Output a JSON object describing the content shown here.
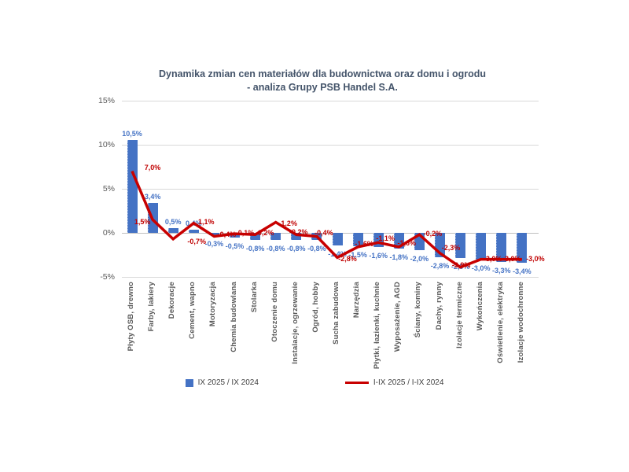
{
  "title": {
    "line1": "Dynamika zmian cen materiałów dla budownictwa oraz domu i ogrodu",
    "line2": "- analiza Grupy PSB Handel S.A."
  },
  "colors": {
    "bar": "#4472C4",
    "line": "#C80000",
    "bar_label": "#4472C4",
    "line_label": "#C00000",
    "title": "#44546A",
    "axis_text": "#595959"
  },
  "chart_data": {
    "type": "bar",
    "title": "Dynamika zmian cen materiałów dla budownictwa oraz domu i ogrodu - analiza Grupy PSB Handel S.A.",
    "categories": [
      "Płyty OSB, drewno",
      "Farby, lakiery",
      "Dekoracje",
      "Cement, wapno",
      "Motoryzacja",
      "Chemia budowlana",
      "Stolarka",
      "Otoczenie domu",
      "Instalacje, ogrzewanie",
      "Ogród, hobby",
      "Sucha zabudowa",
      "Narzędzia",
      "Płytki, łazienki, kuchnie",
      "Wyposażenie, AGD",
      "Ściany, kominy",
      "Dachy, rynny",
      "Izolacje termiczne",
      "Wykończenia",
      "Oświetlenie, elektryka",
      "Izolacje wodochronne"
    ],
    "series": [
      {
        "name": "IX 2025 / IX 2024",
        "type": "bar",
        "color": "#4472C4",
        "values": [
          10.5,
          3.4,
          0.5,
          0.4,
          -0.3,
          -0.5,
          -0.8,
          -0.8,
          -0.8,
          -0.8,
          -1.4,
          -1.5,
          -1.6,
          -1.8,
          -2.0,
          -2.8,
          -2.9,
          -3.0,
          -3.3,
          -3.4
        ],
        "labels": [
          "10,5%",
          "3,4%",
          "0,5%",
          "0,4%",
          "-0,3%",
          "-0,5%",
          "-0,8%",
          "-0,8%",
          "-0,8%",
          "-0,8%",
          "-1,4%",
          "-1,5%",
          "-1,6%",
          "-1,8%",
          "-2,0%",
          "-2,8%",
          "-2,9%",
          "-3,0%",
          "-3,3%",
          "-3,4%"
        ]
      },
      {
        "name": "I-IX 2025 / I-IX 2024",
        "type": "line",
        "color": "#C80000",
        "values": [
          7.0,
          1.5,
          -0.7,
          1.1,
          -0.4,
          -0.1,
          -0.2,
          1.2,
          -0.2,
          -0.4,
          -2.8,
          -1.6,
          -1.1,
          -1.6,
          -0.2,
          -2.3,
          -3.9,
          -3.0,
          -3.0,
          -3.0
        ],
        "labels": [
          "7,0%",
          "1,5%",
          "-0,7%",
          "1,1%",
          "-0,4%",
          "-0,1%",
          "-0,2%",
          "1,2%",
          "-0,2%",
          "-0,4%",
          "-2,8%",
          "-1,6%",
          "-1,1%",
          "-1,6%",
          "-0,2%",
          "-2,3%",
          "-3,9%",
          "-3,0%",
          "-3,0%",
          "-3,0%"
        ]
      }
    ],
    "ylim": [
      -5,
      15
    ],
    "yticks": [
      {
        "value": 15,
        "label": "15%"
      },
      {
        "value": 10,
        "label": "10%"
      },
      {
        "value": 5,
        "label": "5%"
      },
      {
        "value": 0,
        "label": "0%"
      },
      {
        "value": -5,
        "label": "-5%"
      }
    ],
    "grid": "horizontal",
    "legend_position": "bottom"
  }
}
